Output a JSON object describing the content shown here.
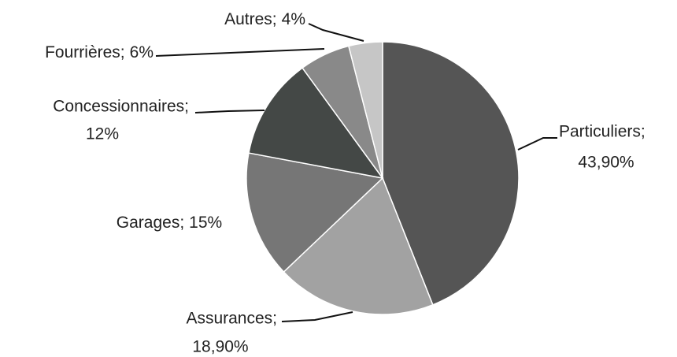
{
  "chart_data": {
    "type": "pie",
    "categories": [
      "Particuliers;",
      "Assurances;",
      "Garages;",
      "Concessionnaires;",
      "Fourrières;",
      "Autres;"
    ],
    "values": [
      43.9,
      18.9,
      15,
      12,
      6,
      4
    ],
    "value_labels": [
      "43,90%",
      "18,90%",
      "15%",
      "12%",
      "6%",
      "4%"
    ],
    "colors": [
      "#555555",
      "#a2a2a2",
      "#767676",
      "#444846",
      "#898989",
      "#c6c6c6"
    ]
  }
}
